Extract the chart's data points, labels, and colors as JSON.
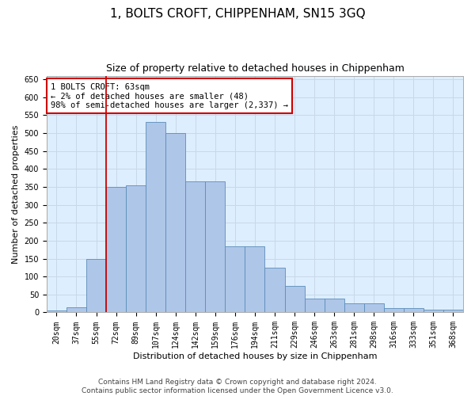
{
  "title": "1, BOLTS CROFT, CHIPPENHAM, SN15 3GQ",
  "subtitle": "Size of property relative to detached houses in Chippenham",
  "xlabel": "Distribution of detached houses by size in Chippenham",
  "ylabel": "Number of detached properties",
  "categories": [
    "20sqm",
    "37sqm",
    "55sqm",
    "72sqm",
    "89sqm",
    "107sqm",
    "124sqm",
    "142sqm",
    "159sqm",
    "176sqm",
    "194sqm",
    "211sqm",
    "229sqm",
    "246sqm",
    "263sqm",
    "281sqm",
    "298sqm",
    "316sqm",
    "333sqm",
    "351sqm",
    "368sqm"
  ],
  "values": [
    5,
    15,
    150,
    350,
    355,
    530,
    500,
    365,
    365,
    185,
    185,
    125,
    75,
    38,
    38,
    25,
    25,
    12,
    12,
    8,
    8
  ],
  "bar_color": "#aec6e8",
  "bar_edge_color": "#5b8db8",
  "vline_color": "#cc0000",
  "vline_pos": 2.5,
  "annotation_text": "1 BOLTS CROFT: 63sqm\n← 2% of detached houses are smaller (48)\n98% of semi-detached houses are larger (2,337) →",
  "annotation_box_color": "#ffffff",
  "annotation_box_edge_color": "#cc0000",
  "ylim": [
    0,
    660
  ],
  "yticks": [
    0,
    50,
    100,
    150,
    200,
    250,
    300,
    350,
    400,
    450,
    500,
    550,
    600,
    650
  ],
  "grid_color": "#c8d8e8",
  "background_color": "#ddeeff",
  "footer_line1": "Contains HM Land Registry data © Crown copyright and database right 2024.",
  "footer_line2": "Contains public sector information licensed under the Open Government Licence v3.0.",
  "title_fontsize": 11,
  "subtitle_fontsize": 9,
  "label_fontsize": 8,
  "tick_fontsize": 7,
  "footer_fontsize": 6.5,
  "annotation_fontsize": 7.5
}
